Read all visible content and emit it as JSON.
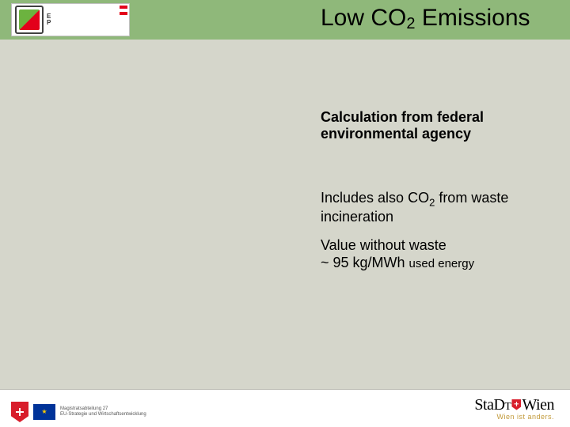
{
  "header": {
    "title_pre": "Low CO",
    "title_sub": "2",
    "title_post": " Emissions",
    "logo": {
      "letters_top": "E",
      "letters_bottom": "P"
    }
  },
  "body": {
    "p1": "Calculation from federal environmental agency",
    "p2_pre": "Includes also CO",
    "p2_sub": "2",
    "p2_post": " from waste incineration",
    "p3_line1": "Value without waste",
    "p3_line2a": "~ 95 kg/MWh ",
    "p3_line2b": "used energy"
  },
  "footer": {
    "ma27_l1": "Magistratsabteilung 27",
    "ma27_l2": "EU-Strategie und Wirtschaftsentwicklung",
    "brand_pre": "Sta",
    "brand_mid": "Dt",
    "brand_post": "Wien",
    "tagline": "Wien ist anders."
  },
  "colors": {
    "header_bg": "#8fb87a",
    "slide_bg": "#d5d6cb",
    "accent_red": "#d81e2c"
  }
}
